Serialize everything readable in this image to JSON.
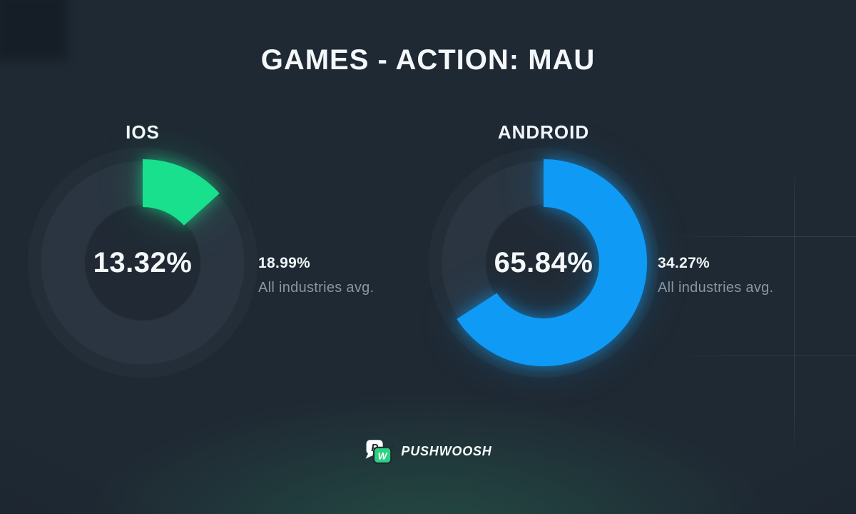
{
  "title": "GAMES - ACTION: MAU",
  "colors": {
    "background": "#1f2933",
    "ring": "#2a3541",
    "ring_hole": "#212a34",
    "ios_accent": "#19e08d",
    "android_accent": "#0f9bf5",
    "text_primary": "#f5f8fa",
    "text_muted": "#8a96a2",
    "logo_green": "#2ed184"
  },
  "chart_data": [
    {
      "type": "donut",
      "platform": "IOS",
      "value_pct": 13.32,
      "value_label": "13.32%",
      "benchmark_pct": 18.99,
      "benchmark_value_label": "18.99%",
      "benchmark_caption": "All industries avg.",
      "color": "#19e08d",
      "start_angle_deg": 0,
      "direction": "clockwise"
    },
    {
      "type": "donut",
      "platform": "ANDROID",
      "value_pct": 65.84,
      "value_label": "65.84%",
      "benchmark_pct": 34.27,
      "benchmark_value_label": "34.27%",
      "benchmark_caption": "All industries avg.",
      "color": "#0f9bf5",
      "start_angle_deg": 0,
      "direction": "clockwise"
    }
  ],
  "brand": {
    "name": "PUSHWOOSH",
    "icon": "pushwoosh-bubbles-icon",
    "icon_letter_1": "P",
    "icon_letter_2": "W"
  }
}
